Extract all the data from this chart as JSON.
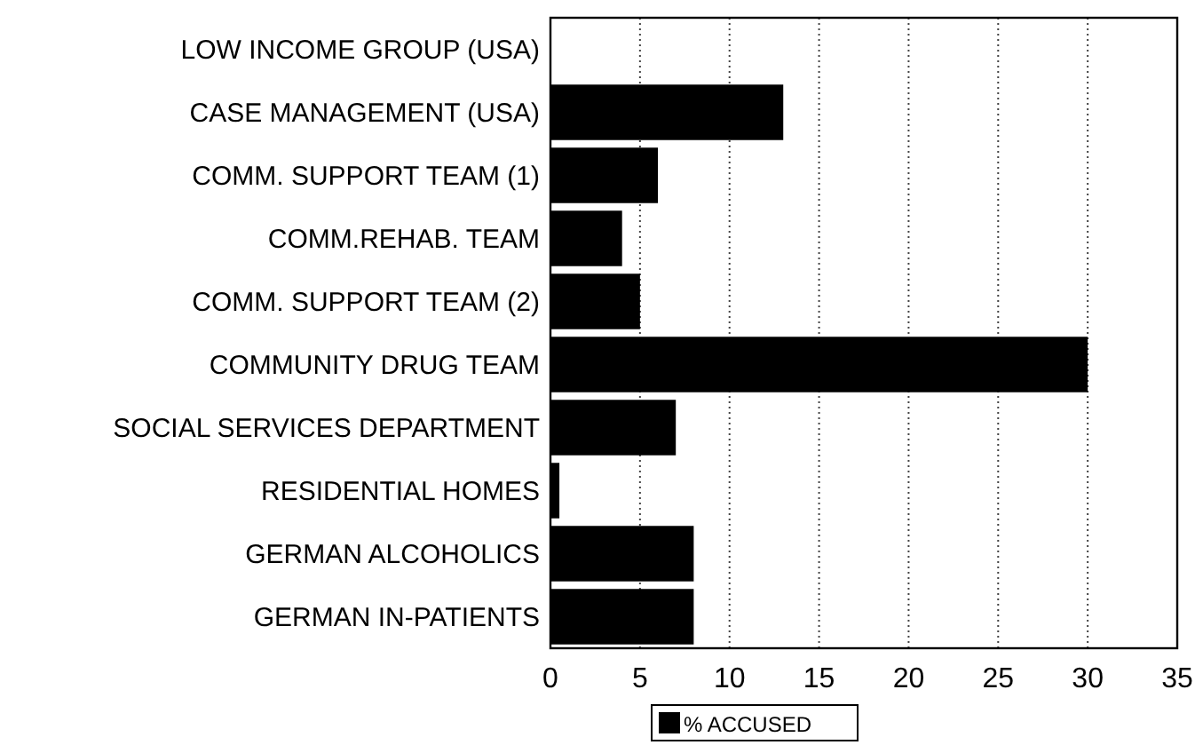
{
  "chart_data": {
    "type": "bar",
    "orientation": "horizontal",
    "categories": [
      "LOW INCOME GROUP (USA)",
      "CASE MANAGEMENT (USA)",
      "COMM. SUPPORT TEAM (1)",
      "COMM.REHAB. TEAM",
      "COMM. SUPPORT TEAM (2)",
      "COMMUNITY DRUG TEAM",
      "SOCIAL SERVICES DEPARTMENT",
      "RESIDENTIAL HOMES",
      "GERMAN ALCOHOLICS",
      "GERMAN IN-PATIENTS"
    ],
    "series": [
      {
        "name": "% ACCUSED",
        "color": "#000000",
        "values": [
          0,
          13,
          6,
          4,
          5,
          30,
          7,
          0.5,
          8,
          8
        ]
      }
    ],
    "xlim": [
      0,
      35
    ],
    "xticks": [
      0,
      5,
      10,
      15,
      20,
      25,
      30,
      35
    ],
    "grid": "x",
    "legend": "bottom"
  }
}
